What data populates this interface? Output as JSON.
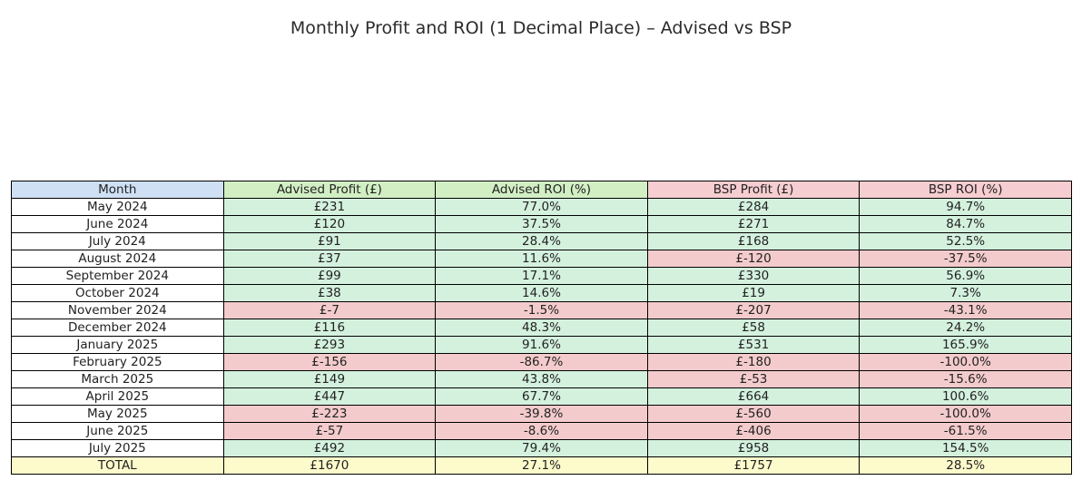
{
  "title": "Monthly Profit and ROI (1 Decimal Place) – Advised vs BSP",
  "chart_data": {
    "type": "table",
    "title": "Monthly Profit and ROI (1 Decimal Place) – Advised vs BSP",
    "columns": [
      "Month",
      "Advised Profit (£)",
      "Advised ROI (%)",
      "BSP Profit (£)",
      "BSP ROI (%)"
    ],
    "rows": [
      {
        "month": "May 2024",
        "advised_profit": "£231",
        "advised_roi": "77.0%",
        "bsp_profit": "£284",
        "bsp_roi": "94.7%"
      },
      {
        "month": "June 2024",
        "advised_profit": "£120",
        "advised_roi": "37.5%",
        "bsp_profit": "£271",
        "bsp_roi": "84.7%"
      },
      {
        "month": "July 2024",
        "advised_profit": "£91",
        "advised_roi": "28.4%",
        "bsp_profit": "£168",
        "bsp_roi": "52.5%"
      },
      {
        "month": "August 2024",
        "advised_profit": "£37",
        "advised_roi": "11.6%",
        "bsp_profit": "£-120",
        "bsp_roi": "-37.5%"
      },
      {
        "month": "September 2024",
        "advised_profit": "£99",
        "advised_roi": "17.1%",
        "bsp_profit": "£330",
        "bsp_roi": "56.9%"
      },
      {
        "month": "October 2024",
        "advised_profit": "£38",
        "advised_roi": "14.6%",
        "bsp_profit": "£19",
        "bsp_roi": "7.3%"
      },
      {
        "month": "November 2024",
        "advised_profit": "£-7",
        "advised_roi": "-1.5%",
        "bsp_profit": "£-207",
        "bsp_roi": "-43.1%"
      },
      {
        "month": "December 2024",
        "advised_profit": "£116",
        "advised_roi": "48.3%",
        "bsp_profit": "£58",
        "bsp_roi": "24.2%"
      },
      {
        "month": "January 2025",
        "advised_profit": "£293",
        "advised_roi": "91.6%",
        "bsp_profit": "£531",
        "bsp_roi": "165.9%"
      },
      {
        "month": "February 2025",
        "advised_profit": "£-156",
        "advised_roi": "-86.7%",
        "bsp_profit": "£-180",
        "bsp_roi": "-100.0%"
      },
      {
        "month": "March 2025",
        "advised_profit": "£149",
        "advised_roi": "43.8%",
        "bsp_profit": "£-53",
        "bsp_roi": "-15.6%"
      },
      {
        "month": "April 2025",
        "advised_profit": "£447",
        "advised_roi": "67.7%",
        "bsp_profit": "£664",
        "bsp_roi": "100.6%"
      },
      {
        "month": "May 2025",
        "advised_profit": "£-223",
        "advised_roi": "-39.8%",
        "bsp_profit": "£-560",
        "bsp_roi": "-100.0%"
      },
      {
        "month": "June 2025",
        "advised_profit": "£-57",
        "advised_roi": "-8.6%",
        "bsp_profit": "£-406",
        "bsp_roi": "-61.5%"
      },
      {
        "month": "July 2025",
        "advised_profit": "£492",
        "advised_roi": "79.4%",
        "bsp_profit": "£958",
        "bsp_roi": "154.5%"
      }
    ],
    "total": {
      "month": "TOTAL",
      "advised_profit": "£1670",
      "advised_roi": "27.1%",
      "bsp_profit": "£1757",
      "bsp_roi": "28.5%"
    }
  },
  "colors": {
    "month_header": "#cfe0f5",
    "advised_header": "#d2efc4",
    "bsp_header": "#f6cdd0",
    "positive_cell": "#d4f1de",
    "negative_cell": "#f4cbcc",
    "total_row": "#fdfacb"
  }
}
